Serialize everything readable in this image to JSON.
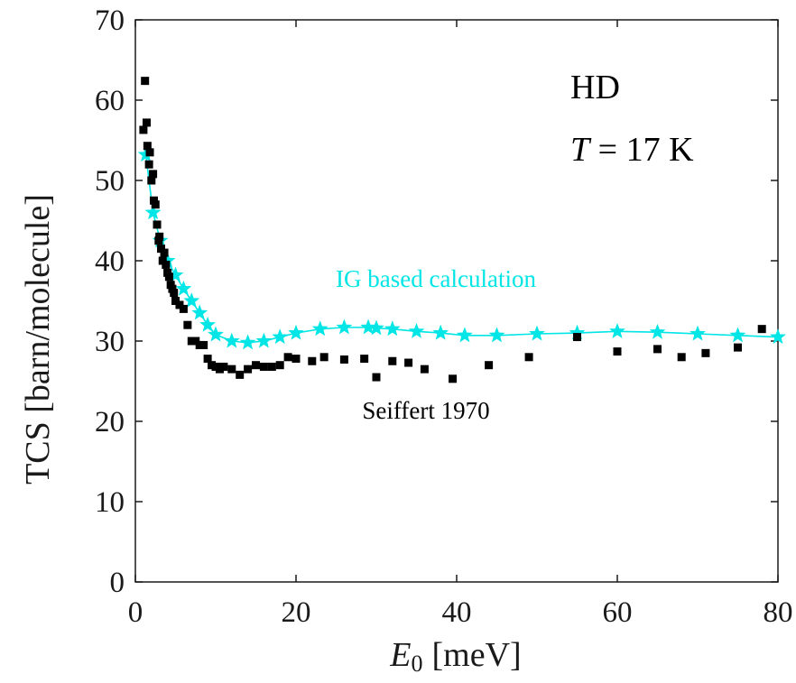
{
  "chart_data": {
    "type": "scatter",
    "xlabel": {
      "var": "E",
      "sub": "0",
      "unit": "[meV]"
    },
    "ylabel": "TCS [barn/molecule]",
    "xlim": [
      0,
      80
    ],
    "ylim": [
      0,
      70
    ],
    "xticks": [
      0,
      20,
      40,
      60,
      80
    ],
    "yticks": [
      0,
      10,
      20,
      30,
      40,
      50,
      60,
      70
    ],
    "grid": false,
    "annotations": {
      "sample": "HD",
      "temp_var": "T",
      "temp_value": " = 17 K"
    },
    "colors": {
      "measurement": "#000000",
      "calculation": "#00e5e5"
    },
    "series": [
      {
        "name": "Seiffert 1970",
        "marker": "square",
        "points": [
          [
            1.0,
            56.3
          ],
          [
            1.2,
            62.4
          ],
          [
            1.4,
            57.2
          ],
          [
            1.5,
            54.3
          ],
          [
            1.7,
            52.0
          ],
          [
            1.8,
            53.5
          ],
          [
            2.0,
            50.0
          ],
          [
            2.2,
            50.8
          ],
          [
            2.3,
            47.5
          ],
          [
            2.5,
            47.0
          ],
          [
            2.7,
            44.5
          ],
          [
            2.9,
            42.5
          ],
          [
            3.0,
            43.0
          ],
          [
            3.2,
            41.5
          ],
          [
            3.4,
            40.0
          ],
          [
            3.6,
            41.0
          ],
          [
            3.8,
            39.5
          ],
          [
            4.0,
            38.5
          ],
          [
            4.2,
            38.0
          ],
          [
            4.4,
            37.0
          ],
          [
            4.6,
            36.5
          ],
          [
            4.8,
            36.0
          ],
          [
            5.0,
            35.0
          ],
          [
            5.5,
            34.5
          ],
          [
            6.0,
            34.0
          ],
          [
            6.5,
            32.0
          ],
          [
            7.0,
            30.0
          ],
          [
            7.5,
            30.0
          ],
          [
            8.0,
            29.5
          ],
          [
            8.5,
            29.5
          ],
          [
            9.0,
            27.8
          ],
          [
            9.5,
            27.0
          ],
          [
            10.0,
            26.8
          ],
          [
            10.5,
            26.5
          ],
          [
            11.0,
            26.8
          ],
          [
            12.0,
            26.5
          ],
          [
            13.0,
            25.8
          ],
          [
            14.0,
            26.5
          ],
          [
            15.0,
            27.0
          ],
          [
            16.0,
            26.8
          ],
          [
            17.0,
            26.8
          ],
          [
            18.0,
            27.0
          ],
          [
            19.0,
            28.0
          ],
          [
            20.0,
            27.8
          ],
          [
            22.0,
            27.5
          ],
          [
            23.5,
            28.0
          ],
          [
            26.0,
            27.7
          ],
          [
            28.5,
            27.8
          ],
          [
            30.0,
            25.5
          ],
          [
            32.0,
            27.5
          ],
          [
            34.0,
            27.3
          ],
          [
            36.0,
            26.5
          ],
          [
            39.5,
            25.3
          ],
          [
            44.0,
            27.0
          ],
          [
            49.0,
            28.0
          ],
          [
            55.0,
            30.5
          ],
          [
            60.0,
            28.7
          ],
          [
            65.0,
            29.0
          ],
          [
            68.0,
            28.0
          ],
          [
            71.0,
            28.5
          ],
          [
            75.0,
            29.2
          ],
          [
            78.0,
            31.5
          ]
        ]
      },
      {
        "name": "IG based calculation",
        "marker": "star",
        "line": true,
        "points": [
          [
            1.3,
            53.2
          ],
          [
            2.2,
            46.0
          ],
          [
            3.1,
            42.5
          ],
          [
            4.0,
            40.0
          ],
          [
            5.0,
            38.2
          ],
          [
            6.0,
            36.5
          ],
          [
            7.0,
            35.0
          ],
          [
            8.0,
            33.5
          ],
          [
            9.0,
            32.0
          ],
          [
            10.0,
            30.8
          ],
          [
            12.0,
            30.0
          ],
          [
            14.0,
            29.8
          ],
          [
            16.0,
            30.0
          ],
          [
            18.0,
            30.5
          ],
          [
            20.0,
            31.0
          ],
          [
            23.0,
            31.5
          ],
          [
            26.0,
            31.7
          ],
          [
            29.0,
            31.7
          ],
          [
            30.0,
            31.6
          ],
          [
            32.0,
            31.5
          ],
          [
            35.0,
            31.2
          ],
          [
            38.0,
            31.0
          ],
          [
            41.0,
            30.7
          ],
          [
            45.0,
            30.7
          ],
          [
            50.0,
            30.9
          ],
          [
            55.0,
            31.0
          ],
          [
            60.0,
            31.2
          ],
          [
            65.0,
            31.1
          ],
          [
            70.0,
            30.9
          ],
          [
            75.0,
            30.7
          ],
          [
            80.0,
            30.5
          ]
        ]
      }
    ]
  }
}
